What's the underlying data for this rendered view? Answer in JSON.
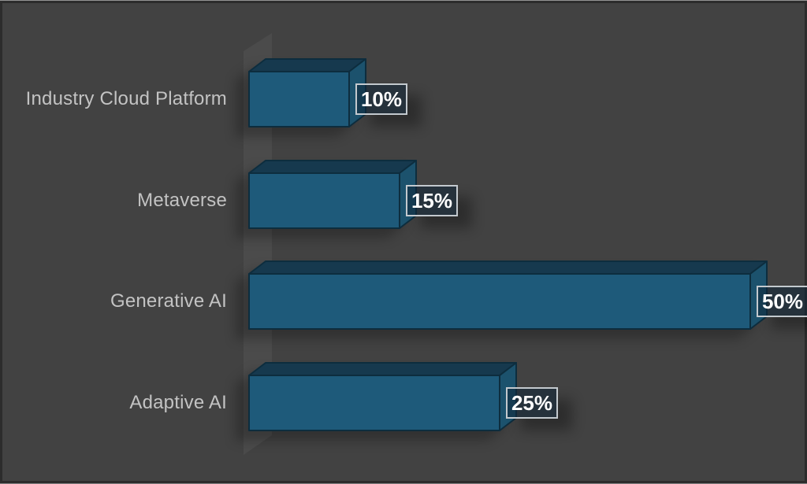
{
  "background_color": "#424242",
  "chart_data": {
    "type": "bar",
    "orientation": "horizontal",
    "style": "3d-box",
    "title": "",
    "xlabel": "",
    "ylabel": "",
    "categories": [
      "Industry Cloud Platform",
      "Metaverse",
      "Generative AI",
      "Adaptive AI"
    ],
    "values": [
      10,
      15,
      50,
      25
    ],
    "value_labels": [
      "10%",
      "15%",
      "50%",
      "25%"
    ],
    "unit": "%",
    "xlim": [
      0,
      50
    ],
    "grid": false,
    "legend": null,
    "axis_wall": true,
    "colors": {
      "bar_front": "#1e5a7a",
      "bar_top": "#16394e",
      "bar_side": "#1c526d",
      "bar_edge": "#0d2d3e",
      "category_label": "#c3c3c3",
      "value_text": "#ffffff",
      "value_box_fill": "rgba(17,39,57,0.55)",
      "value_box_border": "#c3c9ce",
      "wall": "#4b4b4b",
      "background": "#424242"
    }
  }
}
